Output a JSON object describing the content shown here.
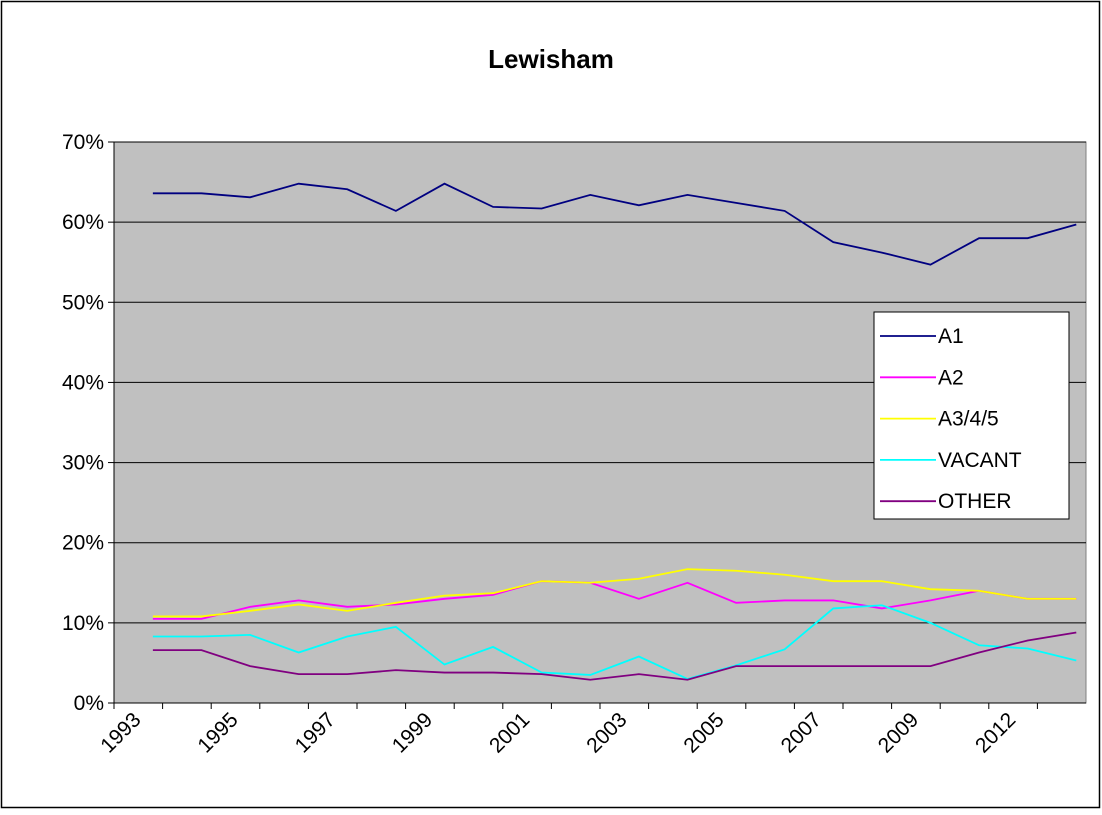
{
  "chart_data": {
    "type": "line",
    "title": "Lewisham",
    "categories": [
      "1993",
      null,
      "1995",
      null,
      "1997",
      null,
      "1999",
      null,
      "2001",
      null,
      "2003",
      null,
      "2005",
      null,
      "2007",
      null,
      "2009",
      null,
      "2012",
      null
    ],
    "series": [
      {
        "name": "A1",
        "color": "#000080",
        "values": [
          63.6,
          63.6,
          63.1,
          64.8,
          64.1,
          61.4,
          64.8,
          61.9,
          61.7,
          63.4,
          62.1,
          63.4,
          62.4,
          61.4,
          57.5,
          56.2,
          54.7,
          58.0,
          58.0,
          59.7
        ]
      },
      {
        "name": "A2",
        "color": "#ff00ff",
        "values": [
          10.5,
          10.5,
          12,
          12.8,
          12,
          12.3,
          13,
          13.5,
          15.2,
          15,
          13,
          15,
          12.5,
          12.8,
          12.8,
          11.8,
          12.8,
          14,
          13,
          13
        ]
      },
      {
        "name": "A3/4/5",
        "color": "#ffff00",
        "values": [
          10.8,
          10.8,
          11.5,
          12.3,
          11.5,
          12.5,
          13.4,
          13.7,
          15.2,
          15,
          15.5,
          16.7,
          16.5,
          16,
          15.2,
          15.2,
          14.2,
          14,
          13,
          13
        ]
      },
      {
        "name": "VACANT",
        "color": "#00ffff",
        "values": [
          8.3,
          8.3,
          8.5,
          6.3,
          8.3,
          9.5,
          4.8,
          7,
          3.8,
          3.5,
          5.8,
          3,
          4.7,
          6.7,
          11.8,
          12.2,
          10,
          7.2,
          6.8,
          5.3
        ]
      },
      {
        "name": "OTHER",
        "color": "#800080",
        "values": [
          6.6,
          6.6,
          4.6,
          3.6,
          3.6,
          4.1,
          3.8,
          3.8,
          3.6,
          2.9,
          3.6,
          2.9,
          4.6,
          4.6,
          4.6,
          4.6,
          4.6,
          6.3,
          7.8,
          8.8
        ]
      }
    ],
    "ylim": [
      0,
      70
    ],
    "yticks": [
      {
        "value": 0,
        "label": "0%"
      },
      {
        "value": 10,
        "label": "10%"
      },
      {
        "value": 20,
        "label": "20%"
      },
      {
        "value": 30,
        "label": "30%"
      },
      {
        "value": 40,
        "label": "40%"
      },
      {
        "value": 50,
        "label": "50%"
      },
      {
        "value": 60,
        "label": "60%"
      },
      {
        "value": 70,
        "label": "70%"
      }
    ],
    "grid": true,
    "plot_background": "#c0c0c0",
    "legend": "right"
  }
}
